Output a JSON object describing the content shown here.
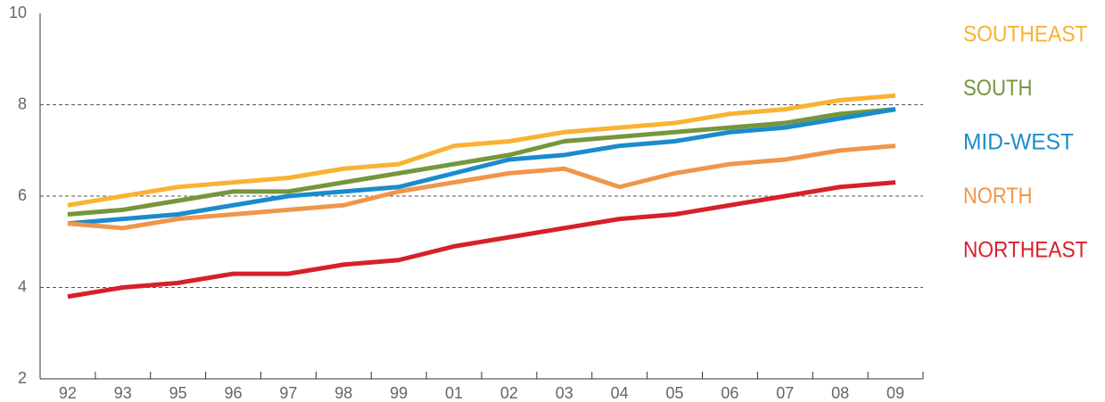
{
  "chart_data": {
    "type": "line",
    "categories": [
      "92",
      "93",
      "95",
      "96",
      "97",
      "98",
      "99",
      "01",
      "02",
      "03",
      "04",
      "05",
      "06",
      "07",
      "08",
      "09"
    ],
    "series": [
      {
        "name": "SOUTHEAST",
        "color": "#f9b233",
        "values": [
          5.8,
          6.0,
          6.2,
          6.3,
          6.4,
          6.6,
          6.7,
          7.1,
          7.2,
          7.4,
          7.5,
          7.6,
          7.8,
          7.9,
          8.1,
          8.2
        ]
      },
      {
        "name": "SOUTH",
        "color": "#76963c",
        "values": [
          5.6,
          5.7,
          5.9,
          6.1,
          6.1,
          6.3,
          6.5,
          6.7,
          6.9,
          7.2,
          7.3,
          7.4,
          7.5,
          7.6,
          7.8,
          7.9
        ]
      },
      {
        "name": "MID-WEST",
        "color": "#1a8ccc",
        "values": [
          5.4,
          5.5,
          5.6,
          5.8,
          6.0,
          6.1,
          6.2,
          6.5,
          6.8,
          6.9,
          7.1,
          7.2,
          7.4,
          7.5,
          7.7,
          7.9
        ]
      },
      {
        "name": "NORTH",
        "color": "#f0964b",
        "values": [
          5.4,
          5.3,
          5.5,
          5.6,
          5.7,
          5.8,
          6.1,
          6.3,
          6.5,
          6.6,
          6.2,
          6.5,
          6.7,
          6.8,
          7.0,
          7.1
        ]
      },
      {
        "name": "NORTHEAST",
        "color": "#d7202a",
        "values": [
          3.8,
          4.0,
          4.1,
          4.3,
          4.3,
          4.5,
          4.6,
          4.9,
          5.1,
          5.3,
          5.5,
          5.6,
          5.8,
          6.0,
          6.2,
          6.3
        ]
      }
    ],
    "ylim": [
      2,
      10
    ],
    "yticks": [
      2,
      4,
      6,
      8,
      10
    ],
    "grid": true,
    "legend": "right"
  }
}
